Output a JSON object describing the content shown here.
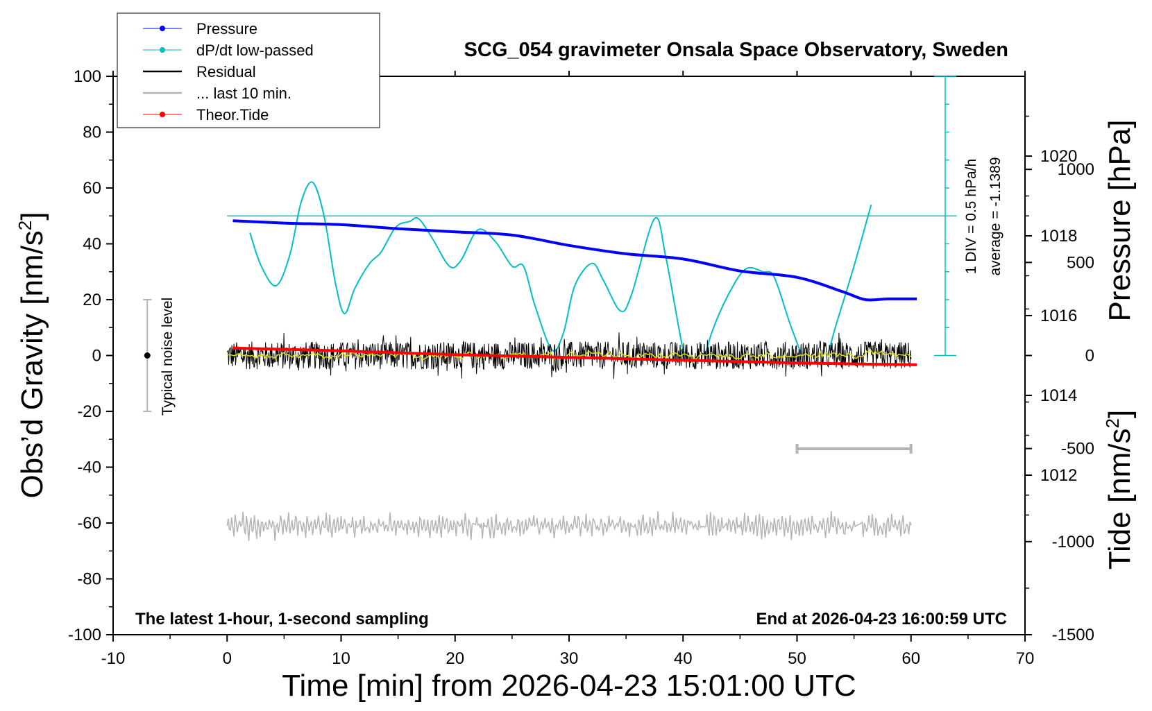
{
  "chart_data": {
    "type": "line",
    "title": "SCG_054 gravimeter Onsala Space Observatory, Sweden",
    "xlabel": "Time [min] from 2026-04-23 15:01:00 UTC",
    "ylabel_left": "Obs’d Gravity [nm/s",
    "ylabel_left_sup": "2",
    "ylabel_left_end": "]",
    "ylabel_right_top": "Pressure [hPa]",
    "ylabel_right_bottom": "Tide [nm/s",
    "ylabel_right_bottom_sup": "2",
    "ylabel_right_bottom_end": "]",
    "xlim": [
      -10,
      70
    ],
    "ylim": [
      -100,
      100
    ],
    "pressure_lim": [
      1008,
      1022
    ],
    "tide_lim": [
      -1500,
      1500
    ],
    "x_ticks": [
      "-10",
      "0",
      "10",
      "20",
      "30",
      "40",
      "50",
      "60",
      "70"
    ],
    "y_ticks": [
      "100",
      "80",
      "60",
      "40",
      "20",
      "0",
      "-20",
      "-40",
      "-60",
      "-80",
      "-100"
    ],
    "pressure_ticks": [
      "1020",
      "1018",
      "1016",
      "1014",
      "1012"
    ],
    "tide_ticks": [
      "1000",
      "500",
      "0",
      "-500",
      "-1000",
      "-1500"
    ],
    "legend": {
      "placement": "top-left",
      "entries": [
        {
          "label": "Pressure",
          "color": "#0000ff",
          "marker": true
        },
        {
          "label": "dP/dt low-passed",
          "color": "#00c0c0",
          "marker": true
        },
        {
          "label": "Residual",
          "color": "#000000",
          "marker": false
        },
        {
          "label": "... last 10 min.",
          "color": "#b4b4b4",
          "marker": false
        },
        {
          "label": "Theor.Tide",
          "color": "#ff0000",
          "marker": true
        }
      ]
    },
    "series": [
      {
        "name": "Pressure",
        "color": "#0000ff",
        "axis": "pressure",
        "x": [
          0.5,
          5,
          10,
          15,
          20,
          25,
          30,
          35,
          40,
          45,
          50,
          54,
          56,
          58,
          60.5
        ],
        "y": [
          1018.38,
          1018.32,
          1018.28,
          1018.18,
          1018.1,
          1018.02,
          1017.76,
          1017.55,
          1017.42,
          1017.12,
          1016.96,
          1016.6,
          1016.4,
          1016.42,
          1016.42
        ]
      },
      {
        "name": "dP/dt low-passed",
        "color": "#00c0c0",
        "axis": "gravity",
        "x": [
          2,
          3,
          4.3,
          5.5,
          6.5,
          7.5,
          8.5,
          9.5,
          10.3,
          11.2,
          12.5,
          13.5,
          14.8,
          16,
          16.8,
          18,
          19.5,
          20.5,
          22,
          23.5,
          25,
          26,
          27,
          28.5,
          29.5,
          30.5,
          32,
          33,
          34.5,
          35.5,
          37.5,
          38.5,
          40,
          41,
          42.5,
          44,
          45.5,
          47,
          48,
          49.5,
          51,
          52,
          53.5,
          55,
          56.5
        ],
        "y": [
          44,
          32,
          25,
          36,
          55,
          62,
          50,
          26,
          15,
          24,
          33,
          37,
          46,
          48,
          49,
          42,
          32,
          34,
          45,
          41,
          32,
          32,
          18,
          2,
          8,
          25,
          33,
          27,
          16,
          22,
          49,
          35,
          2,
          -12,
          8,
          22,
          31,
          30,
          28,
          10,
          -5,
          -8,
          12,
          32,
          54
        ]
      },
      {
        "name": "Residual",
        "color": "#000000",
        "axis": "gravity",
        "x_range": [
          0,
          60
        ],
        "mean": 0,
        "amplitude": 5
      },
      {
        "name": "... last 10 min.",
        "color": "#b4b4b4",
        "axis": "gravity",
        "x_range": [
          0,
          60
        ],
        "mean": -61,
        "amplitude": 5
      },
      {
        "name": "Theor.Tide",
        "color": "#ff0000",
        "axis": "tide",
        "x": [
          0.5,
          10,
          20,
          30,
          40,
          50,
          60.5
        ],
        "y": [
          40,
          25,
          5,
          -10,
          -25,
          -40,
          -50
        ]
      }
    ],
    "reference_line": {
      "label": "average = -1.1389",
      "value": 50
    },
    "scale_bar_label": "1 DIV = 0.5 hPa/h",
    "scale_bar_range": [
      0,
      100
    ],
    "ten_min_bar": [
      50,
      60
    ],
    "noise_label": "Typical noise level",
    "noise_bar": {
      "x": -7,
      "center": 0,
      "low": -20,
      "high": 20
    },
    "footer_left": "The latest 1-hour, 1-second sampling",
    "footer_right": "End at 2026-04-23 16:00:59 UTC"
  }
}
